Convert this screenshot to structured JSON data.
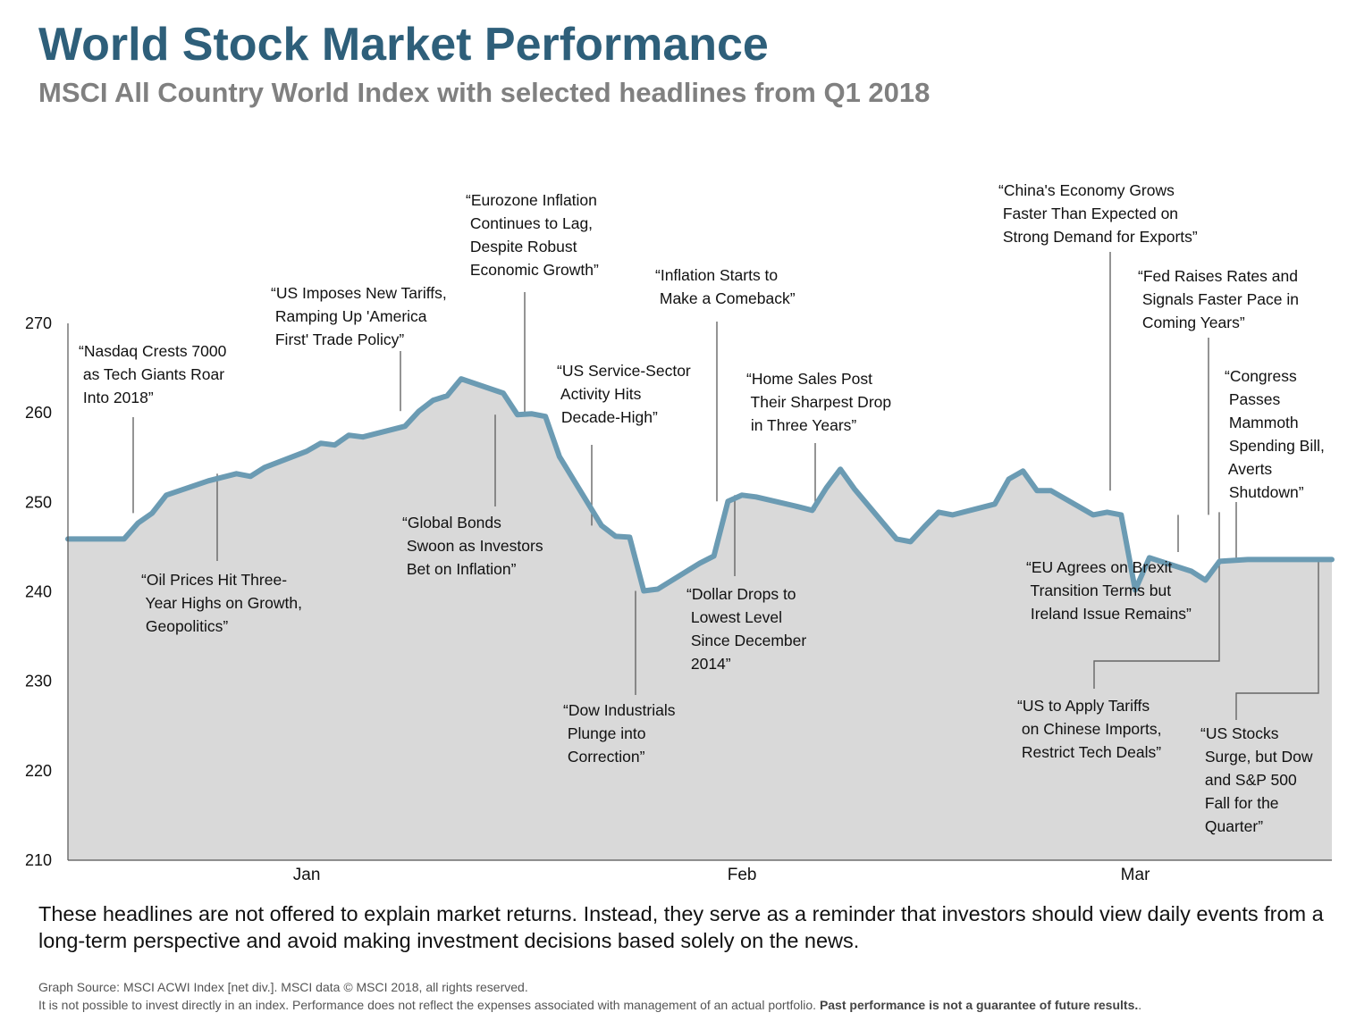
{
  "header": {
    "title": "World Stock Market Performance",
    "subtitle": "MSCI All Country World Index with selected headlines from Q1 2018"
  },
  "chart_data": {
    "type": "area",
    "ylim": [
      210,
      270
    ],
    "y_ticks": [
      270,
      260,
      250,
      240,
      230,
      220,
      210
    ],
    "x_ticks": [
      {
        "label": "Jan",
        "date": "2018-01-15"
      },
      {
        "label": "Feb",
        "date": "2018-02-15"
      },
      {
        "label": "Mar",
        "date": "2018-03-15"
      }
    ],
    "series": [
      {
        "x": [
          "2017-12-29",
          "2018-01-02",
          "2018-01-03",
          "2018-01-04",
          "2018-01-05",
          "2018-01-08",
          "2018-01-09",
          "2018-01-10",
          "2018-01-11",
          "2018-01-12",
          "2018-01-15",
          "2018-01-16",
          "2018-01-17",
          "2018-01-18",
          "2018-01-19",
          "2018-01-22",
          "2018-01-23",
          "2018-01-24",
          "2018-01-25",
          "2018-01-26",
          "2018-01-29",
          "2018-01-30",
          "2018-01-31",
          "2018-02-01",
          "2018-02-02",
          "2018-02-05",
          "2018-02-06",
          "2018-02-07",
          "2018-02-08",
          "2018-02-09",
          "2018-02-12",
          "2018-02-13",
          "2018-02-14",
          "2018-02-15",
          "2018-02-16",
          "2018-02-19",
          "2018-02-20",
          "2018-02-21",
          "2018-02-22",
          "2018-02-23",
          "2018-02-26",
          "2018-02-27",
          "2018-02-28",
          "2018-03-01",
          "2018-03-02",
          "2018-03-05",
          "2018-03-06",
          "2018-03-07",
          "2018-03-08",
          "2018-03-09",
          "2018-03-12",
          "2018-03-13",
          "2018-03-14",
          "2018-03-15",
          "2018-03-16",
          "2018-03-19",
          "2018-03-20",
          "2018-03-21",
          "2018-03-22",
          "2018-03-23",
          "2018-03-26",
          "2018-03-27",
          "2018-03-28",
          "2018-03-29"
        ],
        "y": [
          245.9,
          245.9,
          247.7,
          248.8,
          250.8,
          252.4,
          252.8,
          253.2,
          252.9,
          253.9,
          255.7,
          256.6,
          256.4,
          257.5,
          257.3,
          258.5,
          260.2,
          261.4,
          261.9,
          263.8,
          262.2,
          259.8,
          259.9,
          259.6,
          255.1,
          247.4,
          246.2,
          246.1,
          240.1,
          240.3,
          243.2,
          244.0,
          250.1,
          250.8,
          250.6,
          249.5,
          249.1,
          251.6,
          253.7,
          251.5,
          245.9,
          245.6,
          247.3,
          248.9,
          248.6,
          249.8,
          252.6,
          253.5,
          251.3,
          251.3,
          248.6,
          248.9,
          248.6,
          240.2,
          243.8,
          242.3,
          241.3,
          243.4,
          243.5,
          243.6,
          243.6,
          243.6,
          243.6,
          243.6
        ]
      }
    ],
    "annotations": [
      {
        "lines": [
          "“Nasdaq Crests 7000",
          " as Tech Giants Roar",
          " Into 2018”"
        ],
        "date": "2018-01-04"
      },
      {
        "lines": [
          "“Oil Prices Hit Three-",
          " Year Highs on Growth,",
          " Geopolitics”"
        ],
        "date": "2018-01-10"
      },
      {
        "lines": [
          "“US Imposes New Tariffs,",
          " Ramping Up 'America",
          " First' Trade Policy”"
        ],
        "date": "2018-01-23"
      },
      {
        "lines": [
          "“Eurozone Inflation",
          " Continues to Lag,",
          " Despite Robust",
          " Economic Growth”"
        ],
        "date": "2018-02-01"
      },
      {
        "lines": [
          "“Global Bonds",
          " Swoon as Investors",
          " Bet on Inflation”"
        ],
        "date": "2018-01-30"
      },
      {
        "lines": [
          "“US Service-Sector",
          " Activity Hits",
          " Decade-High”"
        ],
        "date": "2018-02-05"
      },
      {
        "lines": [
          "“Dow Industrials",
          " Plunge into",
          " Correction”"
        ],
        "date": "2018-02-08"
      },
      {
        "lines": [
          "“Inflation Starts to",
          " Make a Comeback”"
        ],
        "date": "2018-02-14"
      },
      {
        "lines": [
          "“Dollar Drops to",
          " Lowest Level",
          " Since December",
          " 2014”"
        ],
        "date": "2018-02-15"
      },
      {
        "lines": [
          "“Home Sales Post",
          " Their Sharpest Drop",
          " in Three Years”"
        ],
        "date": "2018-02-20"
      },
      {
        "lines": [
          "“China's Economy Grows",
          " Faster Than Expected on",
          " Strong Demand for Exports”"
        ],
        "date": "2018-03-08"
      },
      {
        "lines": [
          "“EU Agrees on Brexit",
          " Transition Terms but",
          " Ireland Issue Remains”"
        ],
        "date": "2018-03-12"
      },
      {
        "lines": [
          "“Fed Raises Rates and",
          " Signals Faster Pace in",
          " Coming Years”"
        ],
        "date": "2018-03-14"
      },
      {
        "lines": [
          "“US to Apply Tariffs",
          " on Chinese Imports,",
          " Restrict Tech Deals”"
        ],
        "date": "2018-03-13"
      },
      {
        "lines": [
          "“Congress",
          " Passes",
          " Mammoth",
          " Spending Bill,",
          " Averts",
          " Shutdown”"
        ],
        "date": "2018-03-16"
      },
      {
        "lines": [
          "“US Stocks",
          " Surge, but Dow",
          " and S&P 500",
          " Fall for the",
          " Quarter”"
        ],
        "date": "2018-03-21"
      }
    ],
    "colors": {
      "line": "#6b9bb3",
      "fill": "#d9d9d9",
      "axis": "#555555",
      "callout": "#666666"
    }
  },
  "footer": {
    "note": "These headlines are not offered to explain market returns. Instead, they serve as a reminder that investors should view daily events from a long-term perspective and avoid making investment decisions based solely on the news.",
    "source_line1": "Graph Source: MSCI ACWI Index [net div.]. MSCI data © MSCI 2018, all rights reserved.",
    "source_line2": "It is not possible to invest directly in an index. Performance does not reflect the expenses associated with management of an actual portfolio.",
    "source_bold": "Past performance is not a guarantee of future results."
  }
}
